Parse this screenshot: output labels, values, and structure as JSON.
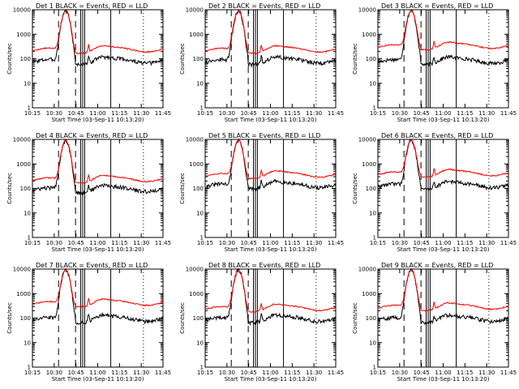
{
  "chart_data": [
    {
      "type": "line",
      "title": "Det 1",
      "legend_text": "BLACK = Events, RED = LLD",
      "xlabel": "Start Time (03-Sep-11 10:13:20)",
      "ylabel": "Counts/sec",
      "yscale": "log",
      "ylim": [
        1,
        10000
      ],
      "xlim_minutes": [
        0,
        100
      ],
      "xticks": [
        "10:15",
        "10:30",
        "10:45",
        "11:00",
        "11:15",
        "11:30",
        "11:45"
      ],
      "yticks": [
        "1",
        "10",
        "100",
        "1000",
        "10000"
      ],
      "baseline_events": 80,
      "baseline_lld": 230,
      "peak": 9000,
      "series": [
        {
          "name": "Events",
          "color": "#000000"
        },
        {
          "name": "LLD",
          "color": "#ff0000"
        }
      ],
      "vlines": {
        "dashed": [
          20,
          33
        ],
        "solid": [
          37,
          38.5,
          40,
          60
        ],
        "dotted": [
          85
        ]
      }
    },
    {
      "type": "line",
      "title": "Det 2",
      "legend_text": "BLACK = Events, RED = LLD",
      "xlabel": "Start Time (03-Sep-11 10:13:20)",
      "ylabel": "Counts/sec",
      "yscale": "log",
      "ylim": [
        1,
        10000
      ],
      "xticks": [
        "10:15",
        "10:30",
        "10:45",
        "11:00",
        "11:15",
        "11:30",
        "11:45"
      ],
      "yticks": [
        "1",
        "10",
        "100",
        "1000",
        "10000"
      ],
      "baseline_events": 80,
      "baseline_lld": 230,
      "peak": 9000,
      "series": [
        {
          "name": "Events",
          "color": "#000000"
        },
        {
          "name": "LLD",
          "color": "#ff0000"
        }
      ],
      "vlines": {
        "dashed": [
          20,
          33
        ],
        "solid": [
          37,
          38.5,
          40,
          60
        ],
        "dotted": [
          85
        ]
      }
    },
    {
      "type": "line",
      "title": "Det 3",
      "legend_text": "BLACK = Events, RED = LLD",
      "xlabel": "Start Time (03-Sep-11 10:13:20)",
      "ylabel": "Counts/sec",
      "yscale": "log",
      "ylim": [
        1,
        10000
      ],
      "xticks": [
        "10:15",
        "10:30",
        "10:45",
        "11:00",
        "11:15",
        "11:30",
        "11:45"
      ],
      "yticks": [
        "1",
        "10",
        "100",
        "1000",
        "10000"
      ],
      "baseline_events": 80,
      "baseline_lld": 320,
      "peak": 9000,
      "series": [
        {
          "name": "Events",
          "color": "#000000"
        },
        {
          "name": "LLD",
          "color": "#ff0000"
        }
      ],
      "vlines": {
        "dashed": [
          20,
          33
        ],
        "solid": [
          37,
          38.5,
          40,
          60
        ],
        "dotted": [
          85
        ]
      }
    },
    {
      "type": "line",
      "title": "Det 4",
      "legend_text": "BLACK = Events, RED = LLD",
      "xlabel": "Start Time (03-Sep-11 10:13:20)",
      "ylabel": "Counts/sec",
      "yscale": "log",
      "ylim": [
        1,
        10000
      ],
      "xticks": [
        "10:15",
        "10:30",
        "10:45",
        "11:00",
        "11:15",
        "11:30",
        "11:45"
      ],
      "yticks": [
        "1",
        "10",
        "100",
        "1000",
        "10000"
      ],
      "baseline_events": 90,
      "baseline_lld": 230,
      "peak": 9000,
      "series": [
        {
          "name": "Events",
          "color": "#000000"
        },
        {
          "name": "LLD",
          "color": "#ff0000"
        }
      ],
      "vlines": {
        "dashed": [
          20,
          33
        ],
        "solid": [
          37,
          38.5,
          40,
          60
        ],
        "dotted": [
          85
        ]
      }
    },
    {
      "type": "line",
      "title": "Det 5",
      "legend_text": "BLACK = Events, RED = LLD",
      "xlabel": "Start Time (03-Sep-11 10:13:20)",
      "ylabel": "Counts/sec",
      "yscale": "log",
      "ylim": [
        1,
        10000
      ],
      "xticks": [
        "10:15",
        "10:30",
        "10:45",
        "11:00",
        "11:15",
        "11:30",
        "11:45"
      ],
      "yticks": [
        "1",
        "10",
        "100",
        "1000",
        "10000"
      ],
      "baseline_events": 130,
      "baseline_lld": 350,
      "peak": 9000,
      "series": [
        {
          "name": "Events",
          "color": "#000000"
        },
        {
          "name": "LLD",
          "color": "#ff0000"
        }
      ],
      "vlines": {
        "dashed": [
          20,
          33
        ],
        "solid": [
          37,
          38.5,
          40,
          60
        ],
        "dotted": [
          85
        ]
      }
    },
    {
      "type": "line",
      "title": "Det 6",
      "legend_text": "BLACK = Events, RED = LLD",
      "xlabel": "Start Time (03-Sep-11 10:13:20)",
      "ylabel": "Counts/sec",
      "yscale": "log",
      "ylim": [
        1,
        10000
      ],
      "xticks": [
        "10:15",
        "10:30",
        "10:45",
        "11:00",
        "11:15",
        "11:30",
        "11:45"
      ],
      "yticks": [
        "1",
        "10",
        "100",
        "1000",
        "10000"
      ],
      "baseline_events": 130,
      "baseline_lld": 400,
      "peak": 9000,
      "series": [
        {
          "name": "Events",
          "color": "#000000"
        },
        {
          "name": "LLD",
          "color": "#ff0000"
        }
      ],
      "vlines": {
        "dashed": [
          20,
          33
        ],
        "solid": [
          37,
          38.5,
          40,
          60
        ],
        "dotted": [
          85
        ]
      }
    },
    {
      "type": "line",
      "title": "Det 7",
      "legend_text": "BLACK = Events, RED = LLD",
      "xlabel": "Start Time (03-Sep-11 10:13:20)",
      "ylabel": "Counts/sec",
      "yscale": "log",
      "ylim": [
        1,
        10000
      ],
      "xticks": [
        "10:15",
        "10:30",
        "10:45",
        "11:00",
        "11:15",
        "11:30",
        "11:45"
      ],
      "yticks": [
        "1",
        "10",
        "100",
        "1000",
        "10000"
      ],
      "baseline_events": 90,
      "baseline_lld": 400,
      "peak": 9000,
      "series": [
        {
          "name": "Events",
          "color": "#000000"
        },
        {
          "name": "LLD",
          "color": "#ff0000"
        }
      ],
      "vlines": {
        "dashed": [
          20,
          33
        ],
        "solid": [
          37,
          38.5,
          40,
          60
        ],
        "dotted": [
          85
        ]
      }
    },
    {
      "type": "line",
      "title": "Det 8",
      "legend_text": "BLACK = Events, RED = LLD",
      "xlabel": "Start Time (03-Sep-11 10:13:20)",
      "ylabel": "Counts/sec",
      "yscale": "log",
      "ylim": [
        1,
        10000
      ],
      "xticks": [
        "10:15",
        "10:30",
        "10:45",
        "11:00",
        "11:15",
        "11:30",
        "11:45"
      ],
      "yticks": [
        "1",
        "10",
        "100",
        "1000",
        "10000"
      ],
      "baseline_events": 90,
      "baseline_lld": 250,
      "peak": 9000,
      "series": [
        {
          "name": "Events",
          "color": "#000000"
        },
        {
          "name": "LLD",
          "color": "#ff0000"
        }
      ],
      "vlines": {
        "dashed": [
          20,
          33
        ],
        "solid": [
          37,
          38.5,
          40,
          60
        ],
        "dotted": [
          85
        ]
      }
    },
    {
      "type": "line",
      "title": "Det 9",
      "legend_text": "BLACK = Events, RED = LLD",
      "xlabel": "Start Time (03-Sep-11 10:13:20)",
      "ylabel": "Counts/sec",
      "yscale": "log",
      "ylim": [
        1,
        10000
      ],
      "xticks": [
        "10:15",
        "10:30",
        "10:45",
        "11:00",
        "11:15",
        "11:30",
        "11:45"
      ],
      "yticks": [
        "1",
        "10",
        "100",
        "1000",
        "10000"
      ],
      "baseline_events": 90,
      "baseline_lld": 280,
      "peak": 9000,
      "series": [
        {
          "name": "Events",
          "color": "#000000"
        },
        {
          "name": "LLD",
          "color": "#ff0000"
        }
      ],
      "vlines": {
        "dashed": [
          20,
          33
        ],
        "solid": [
          37,
          38.5,
          40,
          60
        ],
        "dotted": [
          85
        ]
      }
    }
  ]
}
